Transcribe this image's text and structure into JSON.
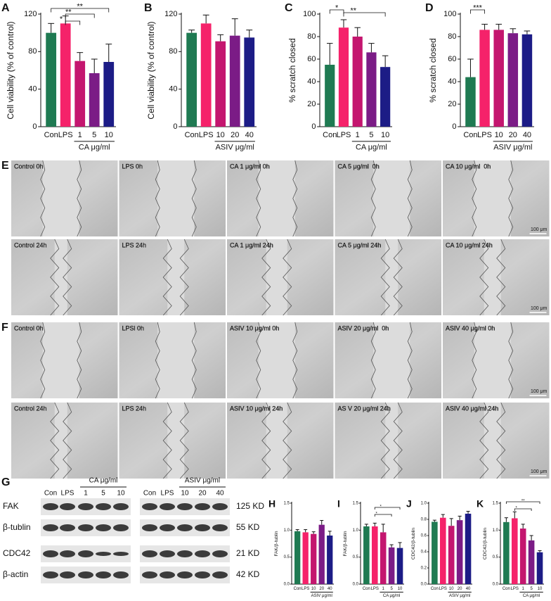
{
  "chart_data": [
    {
      "type": "bar",
      "panel": "A",
      "ylabel": "Cell viability (% of control)",
      "xlabel": "CA μg/ml",
      "categories": [
        "Con",
        "LPS",
        "1",
        "5",
        "10"
      ],
      "values": [
        100,
        110,
        70,
        57,
        69
      ],
      "errors": [
        10,
        8,
        9,
        15,
        19
      ],
      "colors": [
        "#1f7a52",
        "#f5226a",
        "#c4166f",
        "#7b1c86",
        "#1c1c86"
      ],
      "ylim": [
        0,
        120
      ],
      "yticks": [
        0,
        40,
        80,
        120
      ],
      "annotations": [
        "*",
        "**",
        "**"
      ]
    },
    {
      "type": "bar",
      "panel": "B",
      "ylabel": "Cell viability (% of control)",
      "xlabel": "ASIV μg/ml",
      "categories": [
        "Con",
        "LPS",
        "10",
        "20",
        "40"
      ],
      "values": [
        100,
        110,
        91,
        97,
        95
      ],
      "errors": [
        3,
        9,
        7,
        18,
        8
      ],
      "colors": [
        "#1f7a52",
        "#f5226a",
        "#c4166f",
        "#7b1c86",
        "#1c1c86"
      ],
      "ylim": [
        0,
        120
      ],
      "yticks": [
        0,
        40,
        80,
        120
      ],
      "annotations": []
    },
    {
      "type": "bar",
      "panel": "C",
      "ylabel": "% scratch closed",
      "xlabel": "CA μg/ml",
      "categories": [
        "Con",
        "LPS",
        "1",
        "5",
        "10"
      ],
      "values": [
        55,
        88,
        80,
        66,
        53
      ],
      "errors": [
        19,
        7,
        8,
        8,
        10
      ],
      "colors": [
        "#1f7a52",
        "#f5226a",
        "#c4166f",
        "#7b1c86",
        "#1c1c86"
      ],
      "ylim": [
        0,
        100
      ],
      "yticks": [
        0,
        20,
        40,
        60,
        80,
        100
      ],
      "annotations": [
        "*",
        "**"
      ]
    },
    {
      "type": "bar",
      "panel": "D",
      "ylabel": "% scratch closed",
      "xlabel": "ASIV μg/ml",
      "categories": [
        "Con",
        "LPS",
        "10",
        "20",
        "40"
      ],
      "values": [
        44,
        86,
        86,
        83,
        82
      ],
      "errors": [
        16,
        5,
        5,
        4,
        3
      ],
      "colors": [
        "#1f7a52",
        "#f5226a",
        "#c4166f",
        "#7b1c86",
        "#1c1c86"
      ],
      "ylim": [
        0,
        100
      ],
      "yticks": [
        0,
        20,
        40,
        60,
        80,
        100
      ],
      "annotations": [
        "***"
      ]
    },
    {
      "type": "bar",
      "panel": "H",
      "ylabel": "FAK/β-tublin",
      "xlabel": "ASIV μg/ml",
      "categories": [
        "Con",
        "LPS",
        "10",
        "20",
        "40"
      ],
      "values": [
        0.98,
        0.96,
        0.93,
        1.1,
        0.9
      ],
      "errors": [
        0.03,
        0.05,
        0.04,
        0.08,
        0.08
      ],
      "colors": [
        "#1f7a52",
        "#f5226a",
        "#c4166f",
        "#7b1c86",
        "#1c1c86"
      ],
      "ylim": [
        0,
        1.5
      ],
      "yticks": [
        {
          "value": 0,
          "label": "0.0"
        },
        0.5,
        {
          "value": 1,
          "label": "1.0"
        },
        1.5
      ],
      "annotations": []
    },
    {
      "type": "bar",
      "panel": "I",
      "ylabel": "FAK/β-tublin",
      "xlabel": "CA μg/ml",
      "categories": [
        "Con",
        "LPS",
        "1",
        "5",
        "10"
      ],
      "values": [
        1.07,
        1.07,
        0.96,
        0.68,
        0.67
      ],
      "errors": [
        0.04,
        0.06,
        0.15,
        0.05,
        0.1
      ],
      "colors": [
        "#1f7a52",
        "#f5226a",
        "#c4166f",
        "#7b1c86",
        "#1c1c86"
      ],
      "ylim": [
        0,
        1.5
      ],
      "yticks": [
        {
          "value": 0,
          "label": "0.0"
        },
        0.5,
        {
          "value": 1,
          "label": "1.0"
        },
        1.5
      ],
      "annotations": [
        "*",
        "*"
      ]
    },
    {
      "type": "bar",
      "panel": "J",
      "ylabel": "CDC42/β-tublin",
      "xlabel": "ASIV μg/ml",
      "categories": [
        "Con",
        "LPS",
        "10",
        "20",
        "40"
      ],
      "values": [
        0.77,
        0.82,
        0.72,
        0.79,
        0.87
      ],
      "errors": [
        0.02,
        0.04,
        0.09,
        0.05,
        0.03
      ],
      "colors": [
        "#1f7a52",
        "#f5226a",
        "#c4166f",
        "#7b1c86",
        "#1c1c86"
      ],
      "ylim": [
        0,
        1
      ],
      "yticks": [
        {
          "value": 0,
          "label": "0.0"
        },
        0.2,
        0.4,
        0.6,
        0.8,
        {
          "value": 1,
          "label": "1.0"
        }
      ],
      "annotations": []
    },
    {
      "type": "bar",
      "panel": "K",
      "ylabel": "CDC42/β-tublin",
      "xlabel": "CA μg/ml",
      "categories": [
        "Con",
        "LPS",
        "1",
        "5",
        "10"
      ],
      "values": [
        1.15,
        1.22,
        1.03,
        0.81,
        0.59
      ],
      "errors": [
        0.08,
        0.12,
        0.08,
        0.09,
        0.03
      ],
      "colors": [
        "#1f7a52",
        "#f5226a",
        "#c4166f",
        "#7b1c86",
        "#1c1c86"
      ],
      "ylim": [
        0,
        1.5
      ],
      "yticks": [
        {
          "value": 0,
          "label": "0.0"
        },
        0.5,
        {
          "value": 1,
          "label": "1.0"
        },
        1.5
      ],
      "annotations": [
        "**",
        "*"
      ]
    }
  ],
  "micrographs": {
    "scale_bar": "100 μm",
    "panels": [
      {
        "label": "E",
        "rows": [
          [
            "Control 0h",
            "LPS 0h",
            "CA 1 μg/ml 0h",
            "CA 5 μg/ml  0h",
            "CA 10 μg/ml  0h"
          ],
          [
            "Control 24h",
            "LPS 24h",
            "CA 1 μg/ml 24h",
            "CA 5 μg/ml 24h",
            "CA 10 μg/ml 24h"
          ]
        ]
      },
      {
        "label": "F",
        "rows": [
          [
            "Control 0h",
            "LPSl 0h",
            "ASIV 10 μg/ml 0h",
            "ASIV 20 μg/ml  0h",
            "ASIV 40 μg/ml 0h"
          ],
          [
            "Control 24h",
            "LPS 24h",
            "ASIV 10 μg/ml 24h",
            "AS V 20 μg/ml 24h",
            "ASIV 40 μg/ml 24h"
          ]
        ]
      }
    ]
  },
  "blot": {
    "label": "G",
    "groups": [
      "CA μg/ml",
      "ASIV μg/ml"
    ],
    "lanes": [
      "Con",
      "LPS",
      "1",
      "5",
      "10",
      "Con",
      "LPS",
      "10",
      "20",
      "40"
    ],
    "proteins": [
      {
        "name": "FAK",
        "size": "125 KD"
      },
      {
        "name": "β-tublin",
        "size": "55 KD"
      },
      {
        "name": "CDC42",
        "size": "21 KD"
      },
      {
        "name": "β-actin",
        "size": "42 KD"
      }
    ]
  }
}
